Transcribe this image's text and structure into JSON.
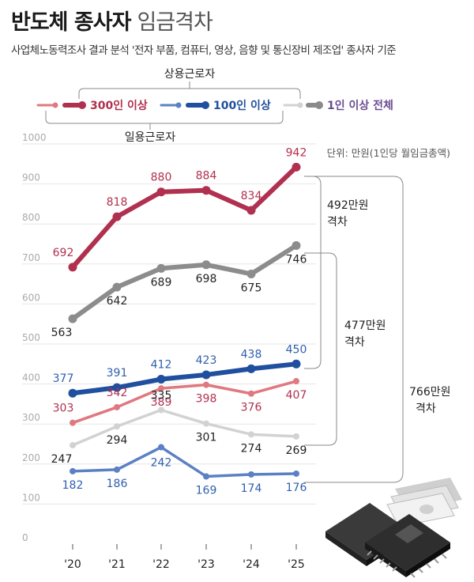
{
  "header": {
    "title_bold": "반도체 종사자",
    "title_light": "임금격차",
    "subtitle": "사업체노동력조사 결과 분석 '전자 부품, 컴퓨터, 영상, 음향 및 통신장비 제조업' 종사자 기준"
  },
  "legend": {
    "regular_label": "상용근로자",
    "daily_label": "일용근로자",
    "entries": [
      {
        "label": "300인 이상",
        "color": "#b0304f",
        "light_color": "#e07880"
      },
      {
        "label": "100인 이상",
        "color": "#1f4f9e",
        "light_color": "#5b80c4"
      },
      {
        "label": "1인 이상 전체",
        "color": "#6a4c93",
        "light_color": "#cfcfcf",
        "line_color": "#8a8a8a"
      }
    ]
  },
  "unit_text": "단위: 만원(1인당 월임금총액)",
  "gap_annotations": [
    {
      "line1": "492만원",
      "line2": "격차"
    },
    {
      "line1": "477만원",
      "line2": "격차"
    },
    {
      "line1": "766만원",
      "line2": "격차"
    }
  ],
  "chart_data": {
    "type": "line",
    "title": "반도체 종사자 임금격차",
    "x": [
      "'20",
      "'21",
      "'22",
      "'23",
      "'24",
      "'25"
    ],
    "ylim": [
      0,
      1000
    ],
    "yticks": [
      0,
      100,
      200,
      300,
      400,
      500,
      600,
      700,
      800,
      900,
      1000
    ],
    "grid": true,
    "unit": "단위: 만원(1인당 월임금총액)",
    "series": [
      {
        "name": "300인 이상 (상용근로자)",
        "values": [
          692,
          818,
          880,
          884,
          834,
          942
        ],
        "color": "#b0304f",
        "width": 6,
        "label_color": "#b0304f"
      },
      {
        "name": "1인 이상 전체 (상용근로자)",
        "values": [
          563,
          642,
          689,
          698,
          675,
          746
        ],
        "color": "#8c8c8c",
        "width": 6,
        "label_color": "#222222"
      },
      {
        "name": "100인 이상 (상용근로자)",
        "values": [
          377,
          391,
          412,
          423,
          438,
          450
        ],
        "color": "#1f4f9e",
        "width": 6,
        "label_color": "#2f5fae"
      },
      {
        "name": "300인 이상 (일용근로자)",
        "values": [
          303,
          342,
          389,
          398,
          376,
          407
        ],
        "color": "#e07880",
        "width": 3.5,
        "label_color": "#b0304f"
      },
      {
        "name": "1인 이상 전체 (일용근로자)",
        "values": [
          247,
          294,
          335,
          301,
          274,
          269
        ],
        "color": "#d2d2d2",
        "width": 3.5,
        "label_color": "#222222"
      },
      {
        "name": "100인 이상 (일용근로자)",
        "values": [
          182,
          186,
          242,
          169,
          174,
          176
        ],
        "color": "#5b80c4",
        "width": 3.5,
        "label_color": "#2f5fae"
      }
    ]
  }
}
